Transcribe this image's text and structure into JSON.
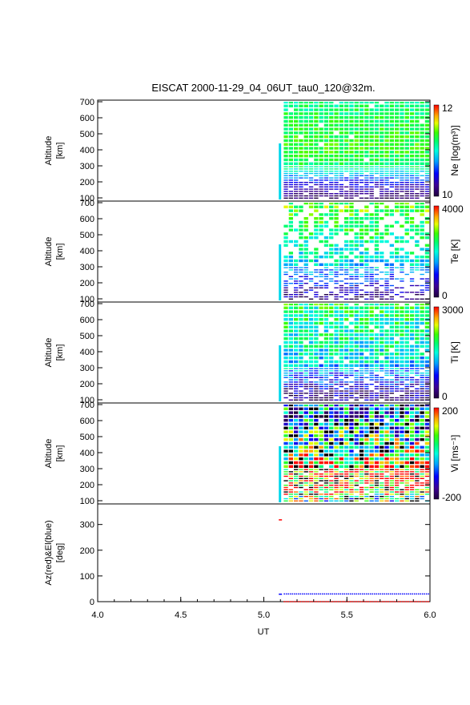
{
  "title": "EISCAT 2000-11-29_04_06UT_tau0_120@32m.",
  "chart_data": {
    "type": "heatmap",
    "x_range": [
      4.0,
      6.0
    ],
    "x_ticks": [
      "4.0",
      "4.5",
      "5.0",
      "5.5",
      "6.0"
    ],
    "xlabel": "UT",
    "data_start_ut": 5.12,
    "data_end_ut": 6.0,
    "panels": [
      {
        "id": "ne",
        "ylabel": "Altitude",
        "yunit": "[km]",
        "ylim": [
          80,
          710
        ],
        "yticks": [
          "100",
          "200",
          "300",
          "400",
          "500",
          "600",
          "700"
        ],
        "colorbar_label": "Ne [log(m³)]",
        "colorbar_max": "12",
        "colorbar_min": "10",
        "vmin": 10,
        "vmax": 12,
        "profile": [
          [
            100,
            10.1
          ],
          [
            150,
            10.3
          ],
          [
            200,
            10.5
          ],
          [
            250,
            10.9
          ],
          [
            300,
            11.2
          ],
          [
            400,
            11.35
          ],
          [
            500,
            11.3
          ],
          [
            600,
            11.25
          ],
          [
            700,
            11.15
          ]
        ],
        "noise": 0.15,
        "sparsity": 0.03
      },
      {
        "id": "te",
        "ylabel": "Altitude",
        "yunit": "[km]",
        "ylim": [
          80,
          710
        ],
        "yticks": [
          "100",
          "200",
          "300",
          "400",
          "500",
          "600",
          "700"
        ],
        "colorbar_label": "Te [K]",
        "colorbar_max": "4000",
        "colorbar_min": "0",
        "vmin": 0,
        "vmax": 4000,
        "profile": [
          [
            100,
            300
          ],
          [
            150,
            600
          ],
          [
            200,
            1000
          ],
          [
            250,
            1400
          ],
          [
            300,
            1800
          ],
          [
            400,
            2100
          ],
          [
            500,
            2300
          ],
          [
            600,
            2600
          ],
          [
            700,
            2800
          ]
        ],
        "noise": 500,
        "sparsity": 0.35
      },
      {
        "id": "ti",
        "ylabel": "Altitude",
        "yunit": "[km]",
        "ylim": [
          80,
          710
        ],
        "yticks": [
          "100",
          "200",
          "300",
          "400",
          "500",
          "600",
          "700"
        ],
        "colorbar_label": "Ti [K]",
        "colorbar_max": "3000",
        "colorbar_min": "0",
        "vmin": 0,
        "vmax": 3000,
        "profile": [
          [
            100,
            250
          ],
          [
            150,
            400
          ],
          [
            200,
            700
          ],
          [
            250,
            1000
          ],
          [
            300,
            1300
          ],
          [
            400,
            1500
          ],
          [
            500,
            1600
          ],
          [
            600,
            1700
          ],
          [
            700,
            1800
          ]
        ],
        "noise": 450,
        "sparsity": 0.05
      },
      {
        "id": "vi",
        "ylabel": "Altitude",
        "yunit": "[km]",
        "ylim": [
          80,
          710
        ],
        "yticks": [
          "100",
          "200",
          "300",
          "400",
          "500",
          "600",
          "700"
        ],
        "colorbar_label": "Vi [ms⁻¹]",
        "colorbar_max": "200",
        "colorbar_min": "-200",
        "vmin": -200,
        "vmax": 200,
        "profile": [
          [
            100,
            20
          ],
          [
            150,
            120
          ],
          [
            200,
            180
          ],
          [
            250,
            190
          ],
          [
            300,
            170
          ],
          [
            400,
            60
          ],
          [
            500,
            0
          ],
          [
            600,
            -40
          ],
          [
            700,
            -80
          ]
        ],
        "noise": 160,
        "sparsity": 0.02
      }
    ],
    "angle_panel": {
      "ylabel": "Az(red)&El(blue)",
      "yunit": "[deg]",
      "ylim": [
        0,
        380
      ],
      "yticks": [
        "0",
        "100",
        "200",
        "300"
      ],
      "az_series": {
        "name": "Az",
        "color": "#ff0000",
        "points": [
          [
            5.09,
            318
          ],
          [
            5.12,
            0
          ],
          [
            6.0,
            0
          ]
        ]
      },
      "el_series": {
        "name": "El",
        "color": "#0000ff",
        "points": [
          [
            5.09,
            29
          ],
          [
            5.12,
            30
          ],
          [
            6.0,
            30
          ]
        ]
      }
    }
  }
}
